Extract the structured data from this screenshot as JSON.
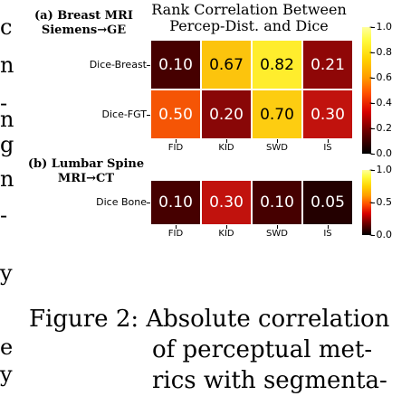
{
  "left_text_fragments": [
    "c",
    "n",
    "-",
    "n",
    "g",
    "n",
    "-",
    "y",
    "e",
    "y"
  ],
  "figure_title_lines": [
    "Rank Correlation Between",
    "Percep-Dist. and Dice"
  ],
  "panel_a_label_lines": [
    "(a) Breast MRI",
    "Siemens→GE"
  ],
  "panel_b_label_lines": [
    "(b) Lumbar Spine",
    "MRI→CT"
  ],
  "caption_lines": [
    "Figure 2: Absolute correlation",
    "of perceptual met-",
    "rics with segmenta-"
  ],
  "colorbar_ticks": [
    "1.0",
    "0.8",
    "0.6",
    "0.4",
    "0.2",
    "0.0"
  ],
  "colorbar_b_ticks": [
    "1.0",
    "0.5",
    "0.0"
  ],
  "chart_data": [
    {
      "type": "heatmap",
      "title": "Rank Correlation Between Percep-Dist. and Dice",
      "subtitle": "(a) Breast MRI Siemens→GE",
      "columns": [
        "FID",
        "KID",
        "SWD",
        "IS"
      ],
      "rows": [
        "Dice-Breast",
        "Dice-FGT"
      ],
      "values": [
        [
          0.1,
          0.67,
          0.82,
          0.21
        ],
        [
          0.5,
          0.2,
          0.7,
          0.3
        ]
      ],
      "value_labels": [
        [
          "0.10",
          "0.67",
          "0.82",
          "0.21"
        ],
        [
          "0.50",
          "0.20",
          "0.70",
          "0.30"
        ]
      ],
      "colorbar_range": [
        0.0,
        1.0
      ],
      "colormap": "hot"
    },
    {
      "type": "heatmap",
      "subtitle": "(b) Lumbar Spine MRI→CT",
      "columns": [
        "FID",
        "KID",
        "SWD",
        "IS"
      ],
      "rows": [
        "Dice Bone"
      ],
      "values": [
        [
          0.1,
          0.3,
          0.1,
          0.05
        ]
      ],
      "value_labels": [
        [
          "0.10",
          "0.30",
          "0.10",
          "0.05"
        ]
      ],
      "colorbar_range": [
        0.0,
        1.0
      ],
      "colormap": "hot"
    }
  ]
}
